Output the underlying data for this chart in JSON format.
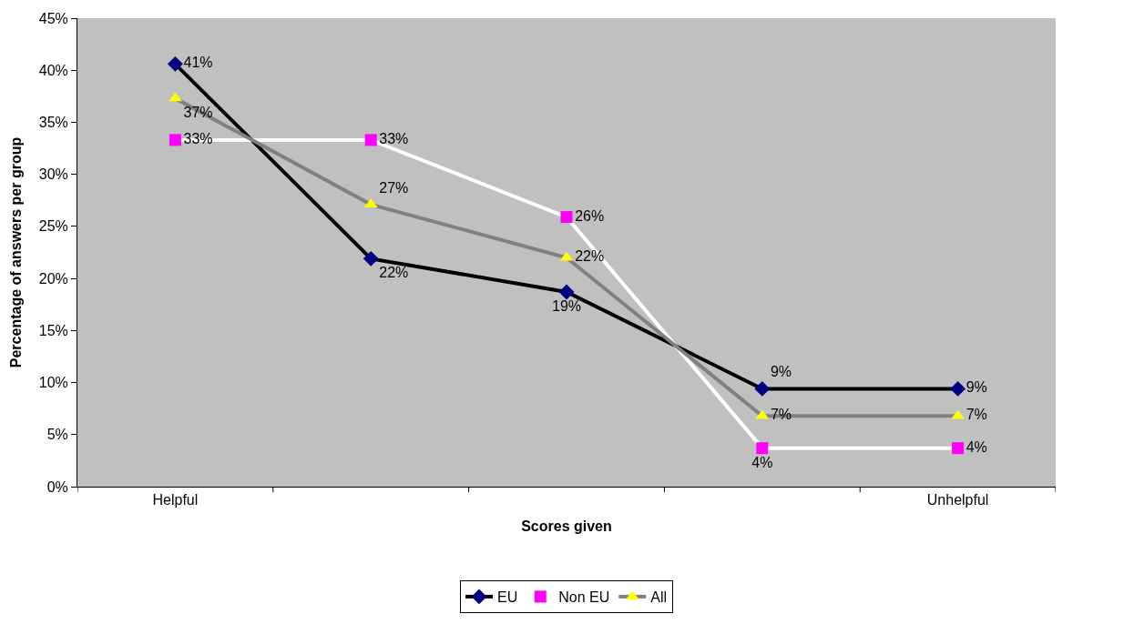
{
  "chart_data": {
    "type": "line",
    "xlabel": "Scores given",
    "ylabel": "Percentage of answers per group",
    "categories": [
      "Helpful",
      null,
      null,
      null,
      "Unhelpful"
    ],
    "series": [
      {
        "name": "EU",
        "color": "#000000",
        "colors": [
          "#000080",
          "#000080",
          "#000080",
          "#000080",
          "#000080"
        ],
        "marker": "diamond",
        "values": [
          40.6,
          21.9,
          18.7,
          9.4,
          9.4
        ],
        "value_labels": [
          "41%",
          "22%",
          "19%",
          "9%",
          "9%"
        ]
      },
      {
        "name": "Non EU",
        "color": "#ffffff",
        "colors": [
          "#ff00ff",
          "#ff00ff",
          "#ff00ff",
          "#ff00ff",
          "#ff00ff"
        ],
        "marker": "square",
        "values": [
          33.3,
          33.3,
          25.9,
          3.7,
          3.7
        ],
        "value_labels": [
          "33%",
          "33%",
          "26%",
          "4%",
          "4%"
        ]
      },
      {
        "name": "All",
        "color": "#808080",
        "colors": [
          "#ffff00",
          "#ffff00",
          "#ffff00",
          "#ffff00",
          "#ffff00"
        ],
        "marker": "triangle",
        "values": [
          37.3,
          27.1,
          22.0,
          6.8,
          6.8
        ],
        "value_labels": [
          "37%",
          "27%",
          "22%",
          "7%",
          "7%"
        ]
      }
    ],
    "ylim": [
      0,
      45
    ],
    "yticks": [
      {
        "value": 0,
        "label": "0%"
      },
      {
        "value": 5,
        "label": "5%"
      },
      {
        "value": 10,
        "label": "10%"
      },
      {
        "value": 15,
        "label": "15%"
      },
      {
        "value": 20,
        "label": "20%"
      },
      {
        "value": 25,
        "label": "25%"
      },
      {
        "value": 30,
        "label": "30%"
      },
      {
        "value": 35,
        "label": "35%"
      },
      {
        "value": 40,
        "label": "40%"
      },
      {
        "value": 45,
        "label": "45%"
      }
    ],
    "grid": false,
    "legend": "bottom"
  }
}
